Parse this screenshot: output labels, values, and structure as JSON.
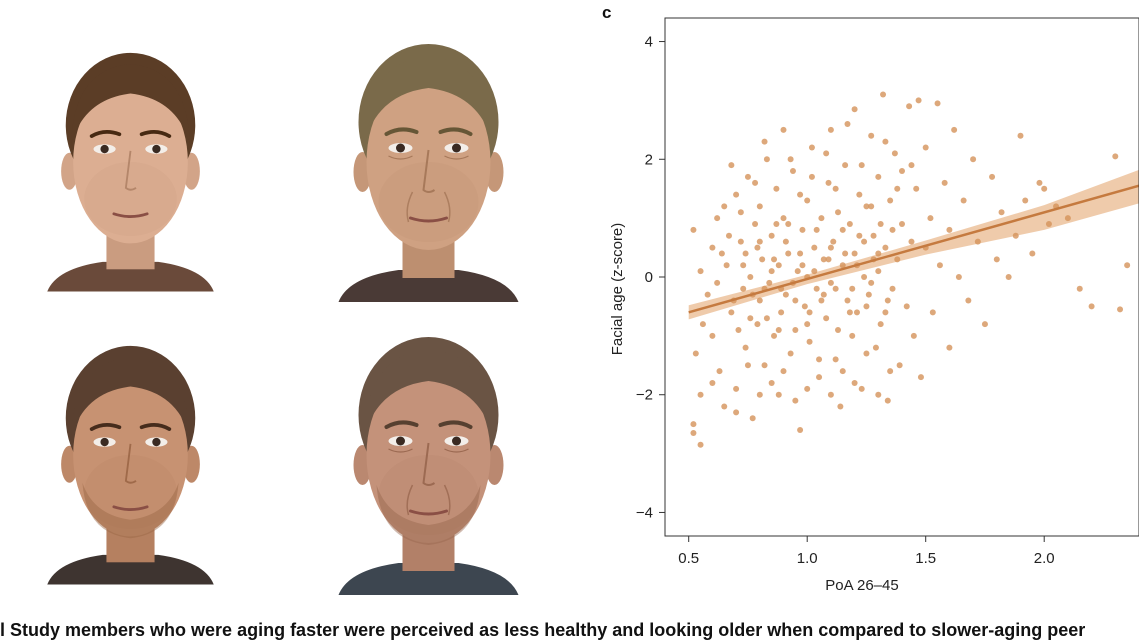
{
  "panel_label": "c",
  "caption": "l Study members who were aging faster were perceived as less healthy and looking older when compared to slower-aging peer",
  "faces": [
    {
      "name": "face-female-slow",
      "skin": "#dcae92",
      "hair": "#5b3d26",
      "shirt": "#6a4a3a",
      "older": false,
      "beard": false
    },
    {
      "name": "face-female-fast",
      "skin": "#cfa182",
      "hair": "#7a6a4a",
      "shirt": "#4a3a36",
      "older": true,
      "beard": false
    },
    {
      "name": "face-male-slow",
      "skin": "#c79272",
      "hair": "#5a4030",
      "shirt": "#3e3430",
      "older": false,
      "beard": true
    },
    {
      "name": "face-male-fast",
      "skin": "#c4927a",
      "hair": "#6a5444",
      "shirt": "#3d4650",
      "older": true,
      "beard": true
    }
  ],
  "chart_data": {
    "type": "scatter",
    "title": "",
    "xlabel": "PoA 26–45",
    "ylabel": "Facial age (z-score)",
    "xlim": [
      0.4,
      2.4
    ],
    "ylim": [
      -4.4,
      4.4
    ],
    "xticks": [
      {
        "value": 0.5,
        "label": "0.5"
      },
      {
        "value": 1.0,
        "label": "1.0"
      },
      {
        "value": 1.5,
        "label": "1.5"
      },
      {
        "value": 2.0,
        "label": "2.0"
      }
    ],
    "yticks": [
      {
        "value": 4,
        "label": "4"
      },
      {
        "value": 2,
        "label": "2"
      },
      {
        "value": 0,
        "label": "0"
      },
      {
        "value": -2,
        "label": "−2"
      },
      {
        "value": -4,
        "label": "−4"
      }
    ],
    "point_color": "#d4925a",
    "line_color": "#c57a3f",
    "band_color": "#e9b98f",
    "regression": {
      "x": [
        0.5,
        2.4
      ],
      "y": [
        -0.6,
        1.55
      ]
    },
    "band": {
      "x": [
        0.5,
        1.0,
        1.5,
        2.0,
        2.4
      ],
      "lower": [
        -0.72,
        -0.12,
        0.38,
        0.8,
        1.25
      ],
      "upper": [
        -0.48,
        0.04,
        0.62,
        1.22,
        1.82
      ]
    },
    "points": [
      [
        0.52,
        -2.5
      ],
      [
        0.52,
        -2.65
      ],
      [
        0.55,
        -2.0
      ],
      [
        0.55,
        -2.85
      ],
      [
        0.53,
        -1.3
      ],
      [
        0.56,
        -0.8
      ],
      [
        0.52,
        0.8
      ],
      [
        0.55,
        0.1
      ],
      [
        0.58,
        -0.3
      ],
      [
        0.6,
        0.5
      ],
      [
        0.62,
        1.0
      ],
      [
        0.6,
        -1.0
      ],
      [
        0.63,
        -1.6
      ],
      [
        0.65,
        -2.2
      ],
      [
        0.66,
        0.2
      ],
      [
        0.68,
        -0.6
      ],
      [
        0.7,
        1.4
      ],
      [
        0.7,
        -1.9
      ],
      [
        0.72,
        0.6
      ],
      [
        0.73,
        -0.2
      ],
      [
        0.74,
        -1.2
      ],
      [
        0.75,
        1.7
      ],
      [
        0.76,
        0.0
      ],
      [
        0.77,
        -2.4
      ],
      [
        0.78,
        0.9
      ],
      [
        0.79,
        -0.8
      ],
      [
        0.8,
        1.2
      ],
      [
        0.8,
        -0.4
      ],
      [
        0.81,
        0.3
      ],
      [
        0.82,
        -1.5
      ],
      [
        0.83,
        2.0
      ],
      [
        0.84,
        -0.1
      ],
      [
        0.85,
        0.7
      ],
      [
        0.86,
        -1.0
      ],
      [
        0.87,
        1.5
      ],
      [
        0.88,
        -2.0
      ],
      [
        0.88,
        0.2
      ],
      [
        0.89,
        -0.6
      ],
      [
        0.9,
        2.5
      ],
      [
        0.9,
        1.0
      ],
      [
        0.91,
        -0.3
      ],
      [
        0.92,
        0.4
      ],
      [
        0.93,
        -1.3
      ],
      [
        0.94,
        1.8
      ],
      [
        0.95,
        -0.9
      ],
      [
        0.96,
        0.1
      ],
      [
        0.97,
        -2.6
      ],
      [
        0.98,
        0.8
      ],
      [
        0.99,
        -0.5
      ],
      [
        1.0,
        1.3
      ],
      [
        1.0,
        0.0
      ],
      [
        1.01,
        -1.1
      ],
      [
        1.02,
        2.2
      ],
      [
        1.03,
        0.5
      ],
      [
        1.04,
        -0.2
      ],
      [
        1.05,
        -1.7
      ],
      [
        1.06,
        1.0
      ],
      [
        1.07,
        0.3
      ],
      [
        1.08,
        -0.7
      ],
      [
        1.09,
        1.6
      ],
      [
        1.1,
        2.5
      ],
      [
        1.1,
        -0.1
      ],
      [
        1.11,
        0.6
      ],
      [
        1.12,
        -1.4
      ],
      [
        1.13,
        1.1
      ],
      [
        1.14,
        -2.2
      ],
      [
        1.15,
        0.2
      ],
      [
        1.16,
        1.9
      ],
      [
        1.17,
        -0.4
      ],
      [
        1.18,
        0.9
      ],
      [
        1.19,
        -1.0
      ],
      [
        1.2,
        2.85
      ],
      [
        1.2,
        0.4
      ],
      [
        1.21,
        -0.6
      ],
      [
        1.22,
        1.4
      ],
      [
        1.23,
        -1.9
      ],
      [
        1.24,
        0.0
      ],
      [
        1.25,
        1.2
      ],
      [
        1.26,
        -0.3
      ],
      [
        1.27,
        2.4
      ],
      [
        1.28,
        0.7
      ],
      [
        1.29,
        -1.2
      ],
      [
        1.3,
        1.7
      ],
      [
        1.3,
        0.1
      ],
      [
        1.31,
        -0.8
      ],
      [
        1.32,
        3.1
      ],
      [
        1.33,
        0.5
      ],
      [
        1.34,
        -2.1
      ],
      [
        1.35,
        1.3
      ],
      [
        1.36,
        -0.2
      ],
      [
        1.37,
        2.1
      ],
      [
        1.38,
        0.3
      ],
      [
        1.39,
        -1.5
      ],
      [
        1.4,
        0.9
      ],
      [
        1.4,
        1.8
      ],
      [
        1.42,
        -0.5
      ],
      [
        1.43,
        2.9
      ],
      [
        1.44,
        0.6
      ],
      [
        1.45,
        -1.0
      ],
      [
        1.46,
        1.5
      ],
      [
        1.47,
        3.0
      ],
      [
        1.48,
        -1.7
      ],
      [
        1.5,
        0.5
      ],
      [
        1.5,
        2.2
      ],
      [
        1.52,
        1.0
      ],
      [
        1.53,
        -0.6
      ],
      [
        1.55,
        2.95
      ],
      [
        1.56,
        0.2
      ],
      [
        1.58,
        1.6
      ],
      [
        1.6,
        -1.2
      ],
      [
        1.6,
        0.8
      ],
      [
        1.62,
        2.5
      ],
      [
        1.64,
        0.0
      ],
      [
        1.66,
        1.3
      ],
      [
        1.68,
        -0.4
      ],
      [
        1.7,
        2.0
      ],
      [
        1.72,
        0.6
      ],
      [
        1.75,
        -0.8
      ],
      [
        1.78,
        1.7
      ],
      [
        1.8,
        0.3
      ],
      [
        1.82,
        1.1
      ],
      [
        1.85,
        0.0
      ],
      [
        1.88,
        0.7
      ],
      [
        1.9,
        2.4
      ],
      [
        1.92,
        1.3
      ],
      [
        1.95,
        0.4
      ],
      [
        1.98,
        1.6
      ],
      [
        2.0,
        1.5
      ],
      [
        2.02,
        0.9
      ],
      [
        2.05,
        1.2
      ],
      [
        2.1,
        1.0
      ],
      [
        2.15,
        -0.2
      ],
      [
        2.2,
        -0.5
      ],
      [
        2.3,
        2.05
      ],
      [
        2.32,
        -0.55
      ],
      [
        2.35,
        0.2
      ],
      [
        0.62,
        -0.1
      ],
      [
        0.67,
        0.7
      ],
      [
        0.71,
        -0.9
      ],
      [
        0.74,
        0.4
      ],
      [
        0.77,
        -0.3
      ],
      [
        0.8,
        0.6
      ],
      [
        0.83,
        -0.7
      ],
      [
        0.86,
        0.3
      ],
      [
        0.89,
        -0.2
      ],
      [
        0.92,
        0.9
      ],
      [
        0.95,
        -0.4
      ],
      [
        0.98,
        0.2
      ],
      [
        1.01,
        -0.6
      ],
      [
        1.04,
        0.8
      ],
      [
        1.07,
        -0.3
      ],
      [
        1.1,
        0.5
      ],
      [
        1.13,
        -0.9
      ],
      [
        1.16,
        0.4
      ],
      [
        1.19,
        -0.2
      ],
      [
        1.22,
        0.7
      ],
      [
        1.25,
        -0.5
      ],
      [
        1.28,
        0.3
      ],
      [
        1.31,
        0.9
      ],
      [
        1.34,
        -0.4
      ],
      [
        0.64,
        0.4
      ],
      [
        0.69,
        -0.4
      ],
      [
        0.73,
        0.2
      ],
      [
        0.76,
        -0.7
      ],
      [
        0.79,
        0.5
      ],
      [
        0.82,
        -0.2
      ],
      [
        0.85,
        0.1
      ],
      [
        0.88,
        -0.9
      ],
      [
        0.91,
        0.6
      ],
      [
        0.94,
        -0.1
      ],
      [
        0.97,
        0.4
      ],
      [
        1.0,
        -0.8
      ],
      [
        1.03,
        0.1
      ],
      [
        1.06,
        -0.4
      ],
      [
        1.09,
        0.3
      ],
      [
        1.12,
        -0.2
      ],
      [
        1.15,
        0.8
      ],
      [
        1.18,
        -0.6
      ],
      [
        1.21,
        0.2
      ],
      [
        1.24,
        0.6
      ],
      [
        1.27,
        -0.1
      ],
      [
        1.3,
        0.4
      ],
      [
        1.33,
        -0.6
      ],
      [
        1.36,
        0.8
      ],
      [
        0.6,
        -1.8
      ],
      [
        0.65,
        1.2
      ],
      [
        0.7,
        -2.3
      ],
      [
        0.75,
        -1.5
      ],
      [
        0.8,
        -2.0
      ],
      [
        0.85,
        -1.8
      ],
      [
        0.9,
        -1.6
      ],
      [
        0.95,
        -2.1
      ],
      [
        1.0,
        -1.9
      ],
      [
        1.05,
        -1.4
      ],
      [
        1.1,
        -2.0
      ],
      [
        1.15,
        -1.6
      ],
      [
        1.2,
        -1.8
      ],
      [
        1.25,
        -1.3
      ],
      [
        1.3,
        -2.0
      ],
      [
        1.35,
        -1.6
      ],
      [
        0.68,
        1.9
      ],
      [
        0.72,
        1.1
      ],
      [
        0.78,
        1.6
      ],
      [
        0.82,
        2.3
      ],
      [
        0.87,
        0.9
      ],
      [
        0.93,
        2.0
      ],
      [
        0.97,
        1.4
      ],
      [
        1.02,
        1.7
      ],
      [
        1.08,
        2.1
      ],
      [
        1.12,
        1.5
      ],
      [
        1.17,
        2.6
      ],
      [
        1.23,
        1.9
      ],
      [
        1.27,
        1.2
      ],
      [
        1.33,
        2.3
      ],
      [
        1.38,
        1.5
      ],
      [
        1.44,
        1.9
      ]
    ]
  }
}
